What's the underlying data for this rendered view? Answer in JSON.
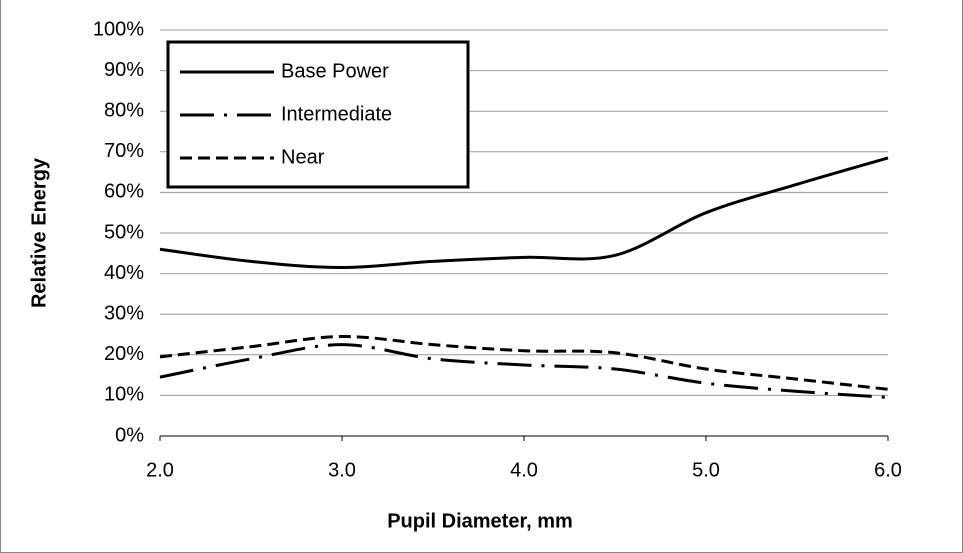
{
  "chart_data": {
    "type": "line",
    "xlabel": "Pupil Diameter, mm",
    "ylabel": "Relative Energy",
    "x": [
      2.0,
      2.5,
      3.0,
      3.5,
      4.0,
      4.5,
      5.0,
      5.5,
      6.0
    ],
    "series": [
      {
        "name": "Base Power",
        "color": "#000000",
        "dash": "solid",
        "values": [
          46,
          43,
          41.5,
          43,
          44,
          44.5,
          55,
          62,
          68.5
        ]
      },
      {
        "name": "Intermediate",
        "color": "#000000",
        "dash": "dashdot",
        "values": [
          14.5,
          19,
          22.5,
          19,
          17.5,
          16.5,
          13,
          11,
          9.5
        ]
      },
      {
        "name": "Near",
        "color": "#000000",
        "dash": "dashed",
        "values": [
          19.5,
          22,
          24.5,
          22.5,
          21,
          20.5,
          16.5,
          14,
          11.5
        ]
      }
    ],
    "xlim": [
      2,
      6
    ],
    "xticks": [
      {
        "value": 2,
        "label": "2.0"
      },
      {
        "value": 3,
        "label": "3.0"
      },
      {
        "value": 4,
        "label": "4.0"
      },
      {
        "value": 5,
        "label": "5.0"
      },
      {
        "value": 6,
        "label": "6.0"
      }
    ],
    "ylim": [
      0,
      100
    ],
    "yticks": [
      {
        "value": 0,
        "label": "0%"
      },
      {
        "value": 10,
        "label": "10%"
      },
      {
        "value": 20,
        "label": "20%"
      },
      {
        "value": 30,
        "label": "30%"
      },
      {
        "value": 40,
        "label": "40%"
      },
      {
        "value": 50,
        "label": "50%"
      },
      {
        "value": 60,
        "label": "60%"
      },
      {
        "value": 70,
        "label": "70%"
      },
      {
        "value": 80,
        "label": "80%"
      },
      {
        "value": 90,
        "label": "90%"
      },
      {
        "value": 100,
        "label": "100%"
      }
    ],
    "grid": true,
    "legend": "upper left"
  }
}
